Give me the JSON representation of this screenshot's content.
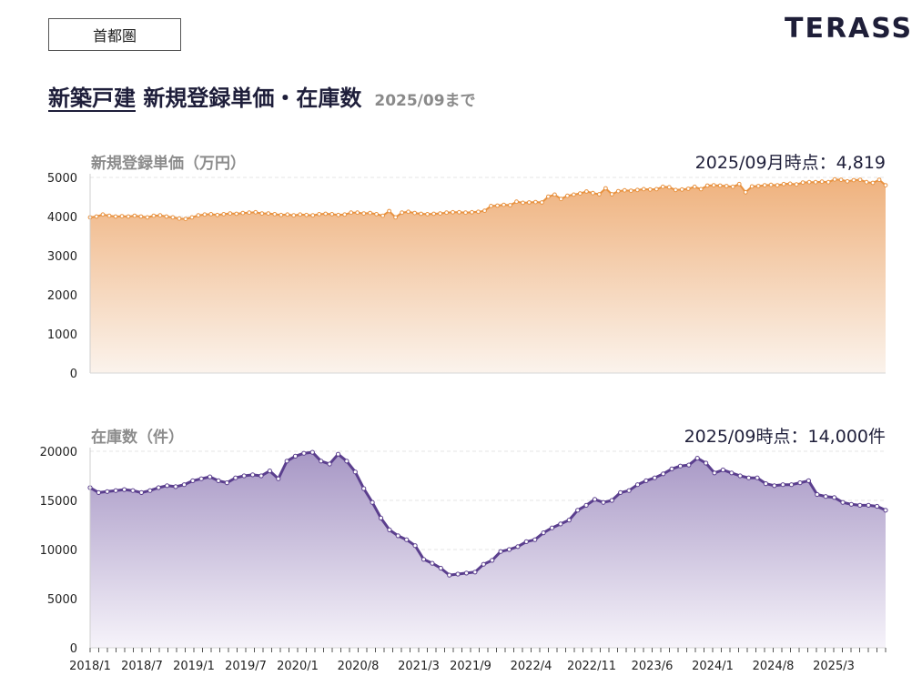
{
  "region_tag": "首都圏",
  "brand": "TERASS",
  "headline": {
    "underlined": "新築戸建",
    "rest": " 新規登録単価・在庫数",
    "asof": "2025/09まで"
  },
  "colors": {
    "price_line": "#e89240",
    "price_fill_top": "#efb27e",
    "stock_line": "#5b3f8e",
    "stock_fill_top": "#a797c5"
  },
  "chart_data": [
    {
      "type": "area",
      "title": "新規登録単価（万円）",
      "annotation": "2025/09月時点：4,819",
      "ylim": [
        0,
        5000
      ],
      "y_ticks": [
        "0",
        "1000",
        "2000",
        "3000",
        "4000",
        "5000"
      ],
      "x_start": "2018/01",
      "x_end": "2025/09",
      "values": [
        3980,
        4000,
        4050,
        4020,
        4000,
        4010,
        4000,
        4020,
        4000,
        3980,
        4020,
        4030,
        4000,
        3980,
        3950,
        3940,
        3980,
        4030,
        4050,
        4060,
        4040,
        4060,
        4080,
        4070,
        4090,
        4100,
        4110,
        4080,
        4080,
        4060,
        4040,
        4050,
        4030,
        4050,
        4040,
        4030,
        4060,
        4070,
        4060,
        4040,
        4050,
        4100,
        4100,
        4080,
        4090,
        4060,
        4020,
        4140,
        3980,
        4100,
        4120,
        4090,
        4070,
        4060,
        4070,
        4080,
        4100,
        4110,
        4110,
        4100,
        4110,
        4120,
        4150,
        4270,
        4280,
        4300,
        4290,
        4380,
        4350,
        4360,
        4370,
        4360,
        4510,
        4560,
        4450,
        4530,
        4560,
        4590,
        4640,
        4600,
        4570,
        4720,
        4570,
        4650,
        4670,
        4660,
        4680,
        4700,
        4690,
        4700,
        4760,
        4750,
        4680,
        4690,
        4710,
        4760,
        4700,
        4790,
        4800,
        4790,
        4780,
        4760,
        4830,
        4620,
        4770,
        4780,
        4800,
        4810,
        4800,
        4830,
        4840,
        4820,
        4870,
        4880,
        4880,
        4890,
        4880,
        4950,
        4940,
        4900,
        4930,
        4940,
        4880,
        4860,
        4940,
        4800
      ]
    },
    {
      "type": "area",
      "title": "在庫数（件）",
      "annotation": "2025/09時点：14,000件",
      "ylim": [
        0,
        20000
      ],
      "y_ticks": [
        "0",
        "5000",
        "10000",
        "15000",
        "20000"
      ],
      "x_start": "2018/01",
      "x_end": "2025/09",
      "values": [
        16300,
        15800,
        15900,
        16000,
        16100,
        16000,
        15800,
        16000,
        16300,
        16500,
        16400,
        16600,
        17000,
        17200,
        17400,
        17000,
        16800,
        17300,
        17500,
        17600,
        17500,
        18000,
        17200,
        19000,
        19500,
        19800,
        19900,
        19000,
        18700,
        19700,
        19000,
        17900,
        16200,
        14800,
        13200,
        12000,
        11400,
        11000,
        10400,
        9000,
        8600,
        8100,
        7400,
        7500,
        7600,
        7700,
        8500,
        8900,
        9800,
        10000,
        10300,
        10800,
        11000,
        11700,
        12200,
        12600,
        13000,
        14000,
        14500,
        15100,
        14800,
        15000,
        15800,
        16000,
        16600,
        17000,
        17300,
        17700,
        18200,
        18500,
        18600,
        19300,
        18800,
        17800,
        18100,
        17800,
        17500,
        17300,
        17300,
        16700,
        16500,
        16600,
        16600,
        16800,
        17000,
        15600,
        15400,
        15300,
        14800,
        14600,
        14500,
        14500,
        14400,
        14000
      ]
    }
  ],
  "x_axis": {
    "labels": [
      "2018/1",
      "2018/7",
      "2019/1",
      "2019/7",
      "2020/1",
      "2020/8",
      "2021/3",
      "2021/9",
      "2022/4",
      "2022/11",
      "2023/6",
      "2024/1",
      "2024/8",
      "2025/3"
    ],
    "label_months": [
      "2018/01",
      "2018/07",
      "2019/01",
      "2019/07",
      "2020/01",
      "2020/08",
      "2021/03",
      "2021/09",
      "2022/04",
      "2022/11",
      "2023/06",
      "2024/01",
      "2024/08",
      "2025/03"
    ]
  }
}
